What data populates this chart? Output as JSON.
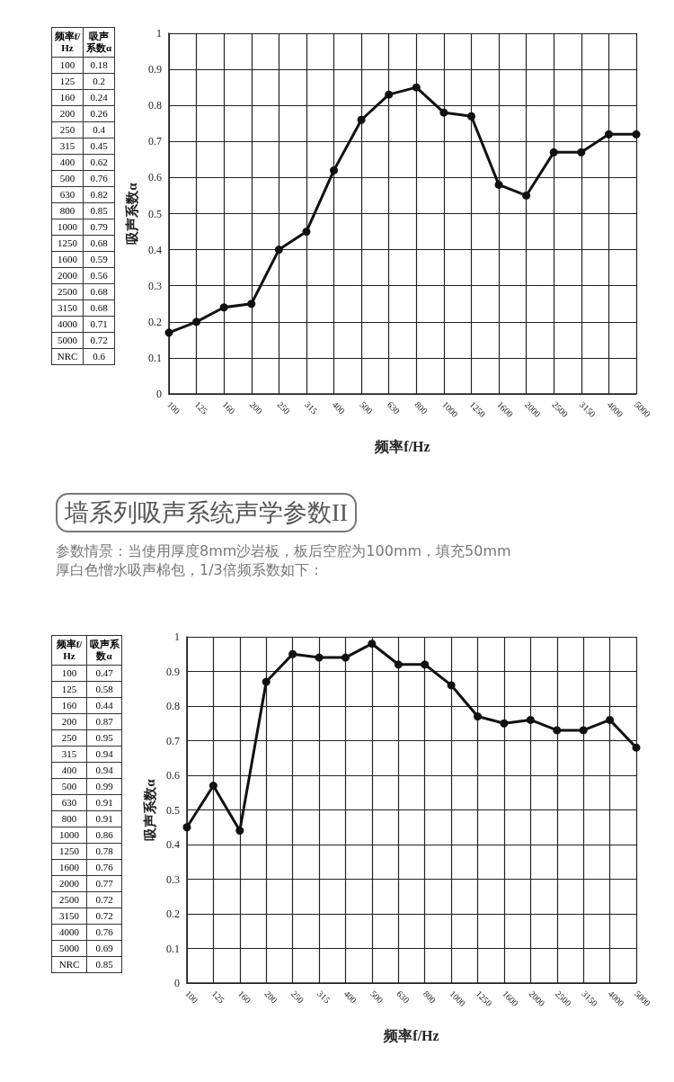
{
  "chart_data": [
    {
      "type": "other",
      "annotations": [
        "频率f/Hz",
        "吸声系数α",
        "100",
        "0.18",
        "125",
        "0.2",
        "160",
        "0.24",
        "200",
        "0.26",
        "250",
        "0.4",
        "315",
        "0.45",
        "400",
        "0.62",
        "500",
        "0.76",
        "630",
        "0.82",
        "800",
        "0.85",
        "1000",
        "0.79",
        "1250",
        "0.68",
        "1600",
        "0.59",
        "2000",
        "0.56",
        "2500",
        "0.68",
        "3150",
        "0.68",
        "4000",
        "0.71",
        "5000",
        "0.72",
        "NRC",
        "0.6"
      ]
    },
    {
      "type": "line",
      "xlabel": "频率f/Hz",
      "ylabel": "吸声系数α",
      "categories": [
        "100",
        "125",
        "160",
        "200",
        "250",
        "315",
        "400",
        "500",
        "630",
        "800",
        "1000",
        "1250",
        "1600",
        "2000",
        "2500",
        "3150",
        "4000",
        "5000"
      ],
      "series": [
        {
          "color": "#111111",
          "values": [
            0.17,
            0.2,
            0.24,
            0.25,
            0.4,
            0.45,
            0.62,
            0.76,
            0.83,
            0.85,
            0.78,
            0.77,
            0.58,
            0.55,
            0.67,
            0.67,
            0.72,
            0.72
          ]
        }
      ],
      "ylim": [
        0,
        1
      ],
      "yticks": [
        0,
        0.1,
        0.2,
        0.3,
        0.4,
        0.5,
        0.6,
        0.7,
        0.8,
        0.9,
        1
      ],
      "grid": true,
      "marker": "circle",
      "line_style": "solid"
    },
    {
      "type": "other",
      "title": "墙系列吸声系统声学参数II",
      "subtitle": "参数情景：当使用厚度8mm沙岩板，板后空腔为100mm，填充50mm\n厚白色憎水吸声棉包，1/3倍频系数如下：",
      "annotations": [
        "频率f/Hz",
        "吸声系数α",
        "100",
        "0.47",
        "125",
        "0.58",
        "160",
        "0.44",
        "200",
        "0.87",
        "250",
        "0.95",
        "315",
        "0.94",
        "400",
        "0.94",
        "500",
        "0.99",
        "630",
        "0.91",
        "800",
        "0.91",
        "1000",
        "0.86",
        "1250",
        "0.78",
        "1600",
        "0.76",
        "2000",
        "0.77",
        "2500",
        "0.72",
        "3150",
        "0.72",
        "4000",
        "0.76",
        "5000",
        "0.69",
        "NRC",
        "0.85"
      ]
    },
    {
      "type": "line",
      "xlabel": "频率f/Hz",
      "ylabel": "吸声系数α",
      "categories": [
        "100",
        "125",
        "160",
        "200",
        "250",
        "315",
        "400",
        "500",
        "630",
        "800",
        "1000",
        "1250",
        "1600",
        "2000",
        "2500",
        "3150",
        "4000",
        "5000"
      ],
      "series": [
        {
          "color": "#111111",
          "values": [
            0.45,
            0.57,
            0.44,
            0.87,
            0.95,
            0.94,
            0.94,
            0.98,
            0.92,
            0.92,
            0.86,
            0.77,
            0.75,
            0.76,
            0.73,
            0.73,
            0.76,
            0.68
          ]
        }
      ],
      "ylim": [
        0,
        1
      ],
      "yticks": [
        0,
        0.1,
        0.2,
        0.3,
        0.4,
        0.5,
        0.6,
        0.7,
        0.8,
        0.9,
        1
      ],
      "grid": true,
      "marker": "circle",
      "line_style": "solid"
    }
  ]
}
